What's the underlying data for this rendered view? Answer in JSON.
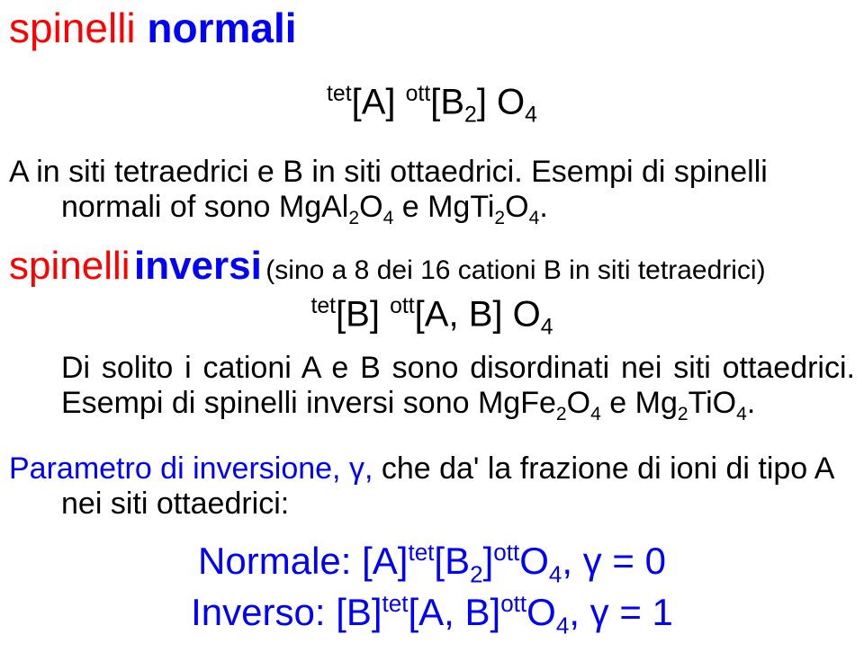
{
  "colors": {
    "red": "#ff0000",
    "blue": "#0000ff",
    "black": "#000000",
    "background": "#ffffff"
  },
  "title": {
    "word1": "spinelli",
    "word2": "normali"
  },
  "formula1": {
    "pre1": "tet",
    "bracket1": "[A] ",
    "pre2": "ott",
    "bracket2": "[B",
    "sub2": "2",
    "bracket2_close": "] O",
    "sub_o": "4"
  },
  "para1_a": "A in siti tetraedrici e B in siti ottaedrici. Esempi di spinelli normali of sono MgAl",
  "para1_sub1": "2",
  "para1_b": "O",
  "para1_sub2": "4",
  "para1_c": " e MgTi",
  "para1_sub3": "2",
  "para1_d": "O",
  "para1_sub4": "4",
  "para1_e": ".",
  "inv": {
    "word1": "spinelli",
    "word2": "inversi",
    "tail": "(sino a 8 dei 16 cationi B in siti tetraedrici)"
  },
  "formula2": {
    "pre1": "tet",
    "bracket1": "[B] ",
    "pre2": "ott",
    "bracket2": "[A, B] O",
    "sub_o": "4"
  },
  "para2_a": "Di solito i cationi A e B sono disordinati nei siti ottaedrici. Esempi di spinelli inversi sono MgFe",
  "para2_sub1": "2",
  "para2_b": "O",
  "para2_sub2": "4",
  "para2_c": " e Mg",
  "para2_sub3": "2",
  "para2_d": "TiO",
  "para2_sub4": "4",
  "para2_e": ".",
  "param": {
    "lead": "Parametro di inversione, γ, ",
    "tail": "che da' la frazione di ioni di tipo A nei siti ottaedrici:"
  },
  "result1": {
    "label": "Normale: ",
    "a": "[A]",
    "sup1": "tet",
    "b": "[B",
    "sub1": "2",
    "c": "]",
    "sup2": "ott",
    "d": "O",
    "sub2": "4",
    "tail": ", γ = 0"
  },
  "result2": {
    "label": "Inverso: ",
    "a": "[B]",
    "sup1": "tet",
    "b": "[A, B]",
    "sup2": "ott",
    "c": "O",
    "sub1": "4",
    "tail": ", γ = 1"
  }
}
